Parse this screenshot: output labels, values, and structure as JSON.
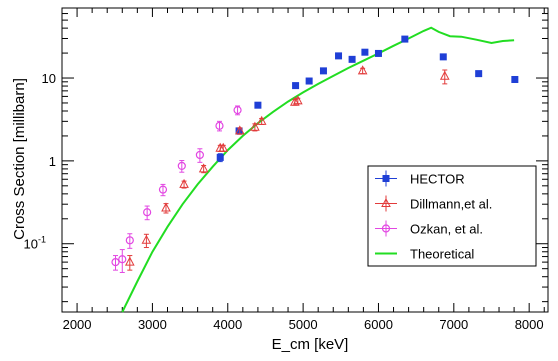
{
  "chart_data": {
    "type": "scatter",
    "xlabel": "E_cm [keV]",
    "ylabel": "Cross Section [millibarn]",
    "xlim": [
      1800,
      8250
    ],
    "ylim": [
      0.015,
      70
    ],
    "y_scale": "log",
    "x_ticks": [
      2000,
      3000,
      4000,
      5000,
      6000,
      7000,
      8000
    ],
    "y_ticks": [
      {
        "value": 0.1,
        "label": "10",
        "sup": "-1"
      },
      {
        "value": 1,
        "label": "1",
        "sup": ""
      },
      {
        "value": 10,
        "label": "10",
        "sup": ""
      }
    ],
    "grid": false,
    "legend_position": "right",
    "series": [
      {
        "name": "HECTOR",
        "color": "#1f3fd6",
        "marker": "square",
        "points": [
          {
            "x": 3900,
            "y": 1.1,
            "err": 0.12
          },
          {
            "x": 4150,
            "y": 2.3,
            "err": 0.2
          },
          {
            "x": 4400,
            "y": 4.7,
            "err": 0.3
          },
          {
            "x": 4900,
            "y": 8.1,
            "err": 0.5
          },
          {
            "x": 5080,
            "y": 9.2,
            "err": 0.5
          },
          {
            "x": 5270,
            "y": 12.2,
            "err": 0.7
          },
          {
            "x": 5470,
            "y": 18.5,
            "err": 1.0
          },
          {
            "x": 5650,
            "y": 16.8,
            "err": 1.0
          },
          {
            "x": 5820,
            "y": 20.5,
            "err": 1.2
          },
          {
            "x": 6000,
            "y": 19.8,
            "err": 1.2
          },
          {
            "x": 6350,
            "y": 29.5,
            "err": 1.5
          },
          {
            "x": 6860,
            "y": 18.0,
            "err": 1.2
          },
          {
            "x": 7330,
            "y": 11.3,
            "err": 0.8
          },
          {
            "x": 7810,
            "y": 9.6,
            "err": 0.7
          }
        ]
      },
      {
        "name": "Dillmann,et al.",
        "color": "#e23b3b",
        "marker": "triangle",
        "points": [
          {
            "x": 2700,
            "y": 0.06,
            "err": 0.012
          },
          {
            "x": 2920,
            "y": 0.11,
            "err": 0.02
          },
          {
            "x": 3180,
            "y": 0.27,
            "err": 0.035
          },
          {
            "x": 3420,
            "y": 0.52,
            "err": 0.05
          },
          {
            "x": 3680,
            "y": 0.8,
            "err": 0.08
          },
          {
            "x": 3900,
            "y": 1.42,
            "err": 0.12
          },
          {
            "x": 3940,
            "y": 1.42,
            "err": 0.12
          },
          {
            "x": 4160,
            "y": 2.3,
            "err": 0.2
          },
          {
            "x": 4360,
            "y": 2.55,
            "err": 0.25
          },
          {
            "x": 4450,
            "y": 3.0,
            "err": 0.25
          },
          {
            "x": 4890,
            "y": 5.1,
            "err": 0.4
          },
          {
            "x": 4930,
            "y": 5.3,
            "err": 0.4
          },
          {
            "x": 5790,
            "y": 12.2,
            "err": 0.9
          },
          {
            "x": 6880,
            "y": 10.5,
            "err": 2.0
          }
        ]
      },
      {
        "name": "Ozkan, et al.",
        "color": "#e247e2",
        "marker": "circle",
        "points": [
          {
            "x": 2510,
            "y": 0.06,
            "err": 0.012
          },
          {
            "x": 2600,
            "y": 0.065,
            "err": 0.02
          },
          {
            "x": 2700,
            "y": 0.11,
            "err": 0.022
          },
          {
            "x": 2930,
            "y": 0.24,
            "err": 0.045
          },
          {
            "x": 3140,
            "y": 0.45,
            "err": 0.07
          },
          {
            "x": 3390,
            "y": 0.87,
            "err": 0.14
          },
          {
            "x": 3630,
            "y": 1.18,
            "err": 0.22
          },
          {
            "x": 3890,
            "y": 2.65,
            "err": 0.35
          },
          {
            "x": 4130,
            "y": 4.1,
            "err": 0.5
          }
        ]
      },
      {
        "name": "Theoretical",
        "color": "#22dd22",
        "marker": "line",
        "points": [
          {
            "x": 2600,
            "y": 0.015
          },
          {
            "x": 2800,
            "y": 0.035
          },
          {
            "x": 3000,
            "y": 0.08
          },
          {
            "x": 3200,
            "y": 0.16
          },
          {
            "x": 3400,
            "y": 0.3
          },
          {
            "x": 3600,
            "y": 0.52
          },
          {
            "x": 3800,
            "y": 0.85
          },
          {
            "x": 4000,
            "y": 1.35
          },
          {
            "x": 4200,
            "y": 2.0
          },
          {
            "x": 4400,
            "y": 2.85
          },
          {
            "x": 4600,
            "y": 3.9
          },
          {
            "x": 4800,
            "y": 5.2
          },
          {
            "x": 5000,
            "y": 6.7
          },
          {
            "x": 5200,
            "y": 8.5
          },
          {
            "x": 5400,
            "y": 10.6
          },
          {
            "x": 5600,
            "y": 13.2
          },
          {
            "x": 5800,
            "y": 16.2
          },
          {
            "x": 6000,
            "y": 19.8
          },
          {
            "x": 6200,
            "y": 24.5
          },
          {
            "x": 6400,
            "y": 30.0
          },
          {
            "x": 6600,
            "y": 37.0
          },
          {
            "x": 6700,
            "y": 40.5
          },
          {
            "x": 6800,
            "y": 36.0
          },
          {
            "x": 6950,
            "y": 32.0
          },
          {
            "x": 7100,
            "y": 31.5
          },
          {
            "x": 7300,
            "y": 29.0
          },
          {
            "x": 7500,
            "y": 26.5
          },
          {
            "x": 7650,
            "y": 28.0
          },
          {
            "x": 7800,
            "y": 28.5
          }
        ]
      }
    ]
  }
}
